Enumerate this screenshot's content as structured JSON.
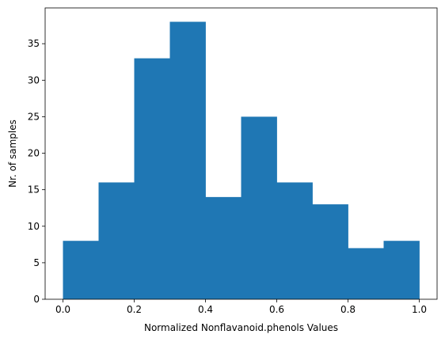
{
  "chart_data": {
    "type": "bar",
    "title": "",
    "xlabel": "Normalized Nonflavanoid.phenols Values",
    "ylabel": "Nr. of samples",
    "bin_edges": [
      0.0,
      0.1,
      0.2,
      0.3,
      0.4,
      0.5,
      0.6,
      0.7,
      0.8,
      0.9,
      1.0
    ],
    "values": [
      8,
      16,
      33,
      38,
      14,
      25,
      16,
      13,
      7,
      8
    ],
    "xlim": [
      -0.05,
      1.05
    ],
    "ylim": [
      0,
      39.9
    ],
    "xticks": [
      0.0,
      0.2,
      0.4,
      0.6,
      0.8,
      1.0
    ],
    "xtick_labels": [
      "0.0",
      "0.2",
      "0.4",
      "0.6",
      "0.8",
      "1.0"
    ],
    "yticks": [
      0,
      5,
      10,
      15,
      20,
      25,
      30,
      35
    ],
    "ytick_labels": [
      "0",
      "5",
      "10",
      "15",
      "20",
      "25",
      "30",
      "35"
    ],
    "bar_color": "#1f77b4",
    "grid": false,
    "legend": "none"
  }
}
